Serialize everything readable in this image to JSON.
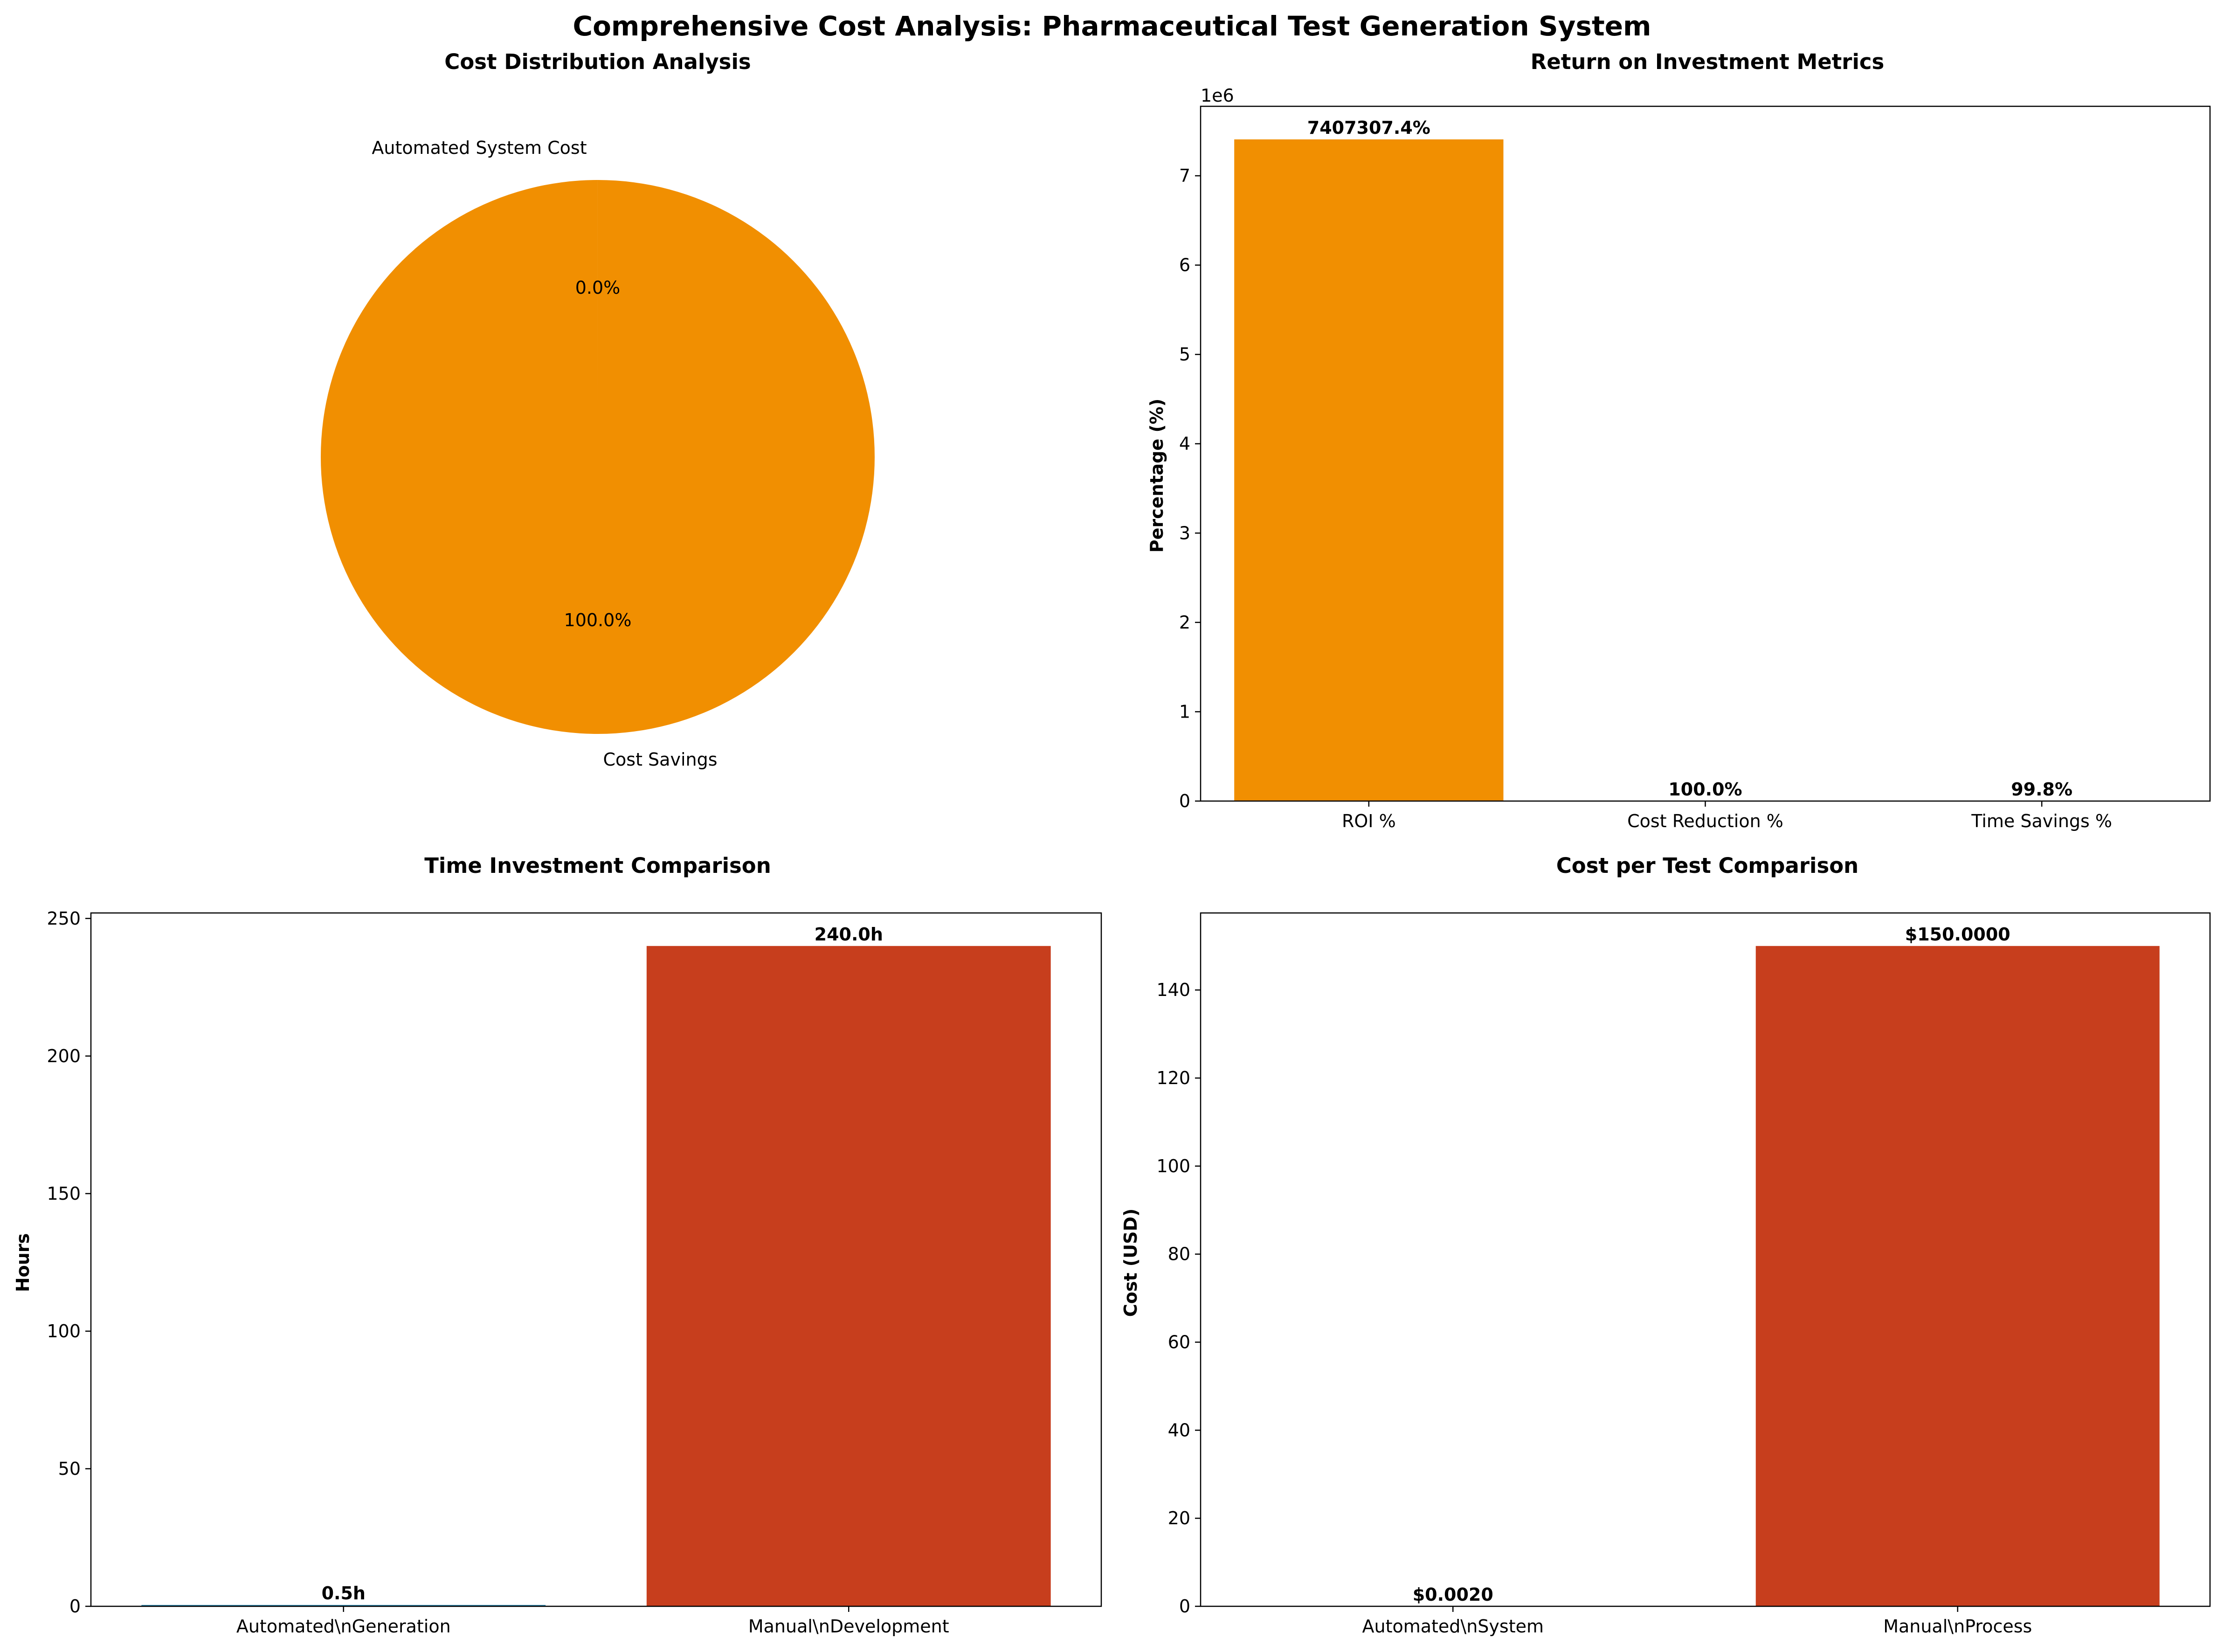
{
  "figure": {
    "title": "Comprehensive Cost Analysis: Pharmaceutical Test Generation System"
  },
  "colors": {
    "orange": "#F18F01",
    "red": "#C73E1D",
    "blue": "#2E86AB",
    "axis": "#000000"
  },
  "chart_data": [
    {
      "id": "pie",
      "type": "pie",
      "title": "Cost Distribution Analysis",
      "slices": [
        {
          "label": "Automated System Cost",
          "value": 0.002,
          "pct_label": "0.0%",
          "color": "#2E86AB"
        },
        {
          "label": "Cost Savings",
          "value": 149.998,
          "pct_label": "100.0%",
          "color": "#F18F01"
        }
      ],
      "legend": "none"
    },
    {
      "id": "roi",
      "type": "bar",
      "title": "Return on Investment Metrics",
      "ylabel": "Percentage (%)",
      "offset_label": "1e6",
      "categories": [
        "ROI %",
        "Cost Reduction %",
        "Time Savings %"
      ],
      "values": [
        7407307.4,
        100.0,
        99.8
      ],
      "value_labels": [
        "7407307.4%",
        "100.0%",
        "99.8%"
      ],
      "color": "#F18F01",
      "ylim": [
        0,
        7777672.77
      ],
      "yticks": [
        0,
        1000000,
        2000000,
        3000000,
        4000000,
        5000000,
        6000000,
        7000000
      ],
      "ytick_labels": [
        "0",
        "1",
        "2",
        "3",
        "4",
        "5",
        "6",
        "7"
      ],
      "grid": false
    },
    {
      "id": "time",
      "type": "bar",
      "title": "Time Investment Comparison",
      "ylabel": "Hours",
      "categories": [
        "Automated\\nGeneration",
        "Manual\\nDevelopment"
      ],
      "values": [
        0.5,
        240.0
      ],
      "value_labels": [
        "0.5h",
        "240.0h"
      ],
      "colors": [
        "#2E86AB",
        "#C73E1D"
      ],
      "ylim": [
        0,
        252
      ],
      "yticks": [
        0,
        50,
        100,
        150,
        200,
        250
      ],
      "ytick_labels": [
        "0",
        "50",
        "100",
        "150",
        "200",
        "250"
      ],
      "grid": false
    },
    {
      "id": "cost",
      "type": "bar",
      "title": "Cost per Test Comparison",
      "ylabel": "Cost (USD)",
      "categories": [
        "Automated\\nSystem",
        "Manual\\nProcess"
      ],
      "values": [
        0.002,
        150.0
      ],
      "value_labels": [
        "$0.0020",
        "$150.0000"
      ],
      "colors": [
        "#2E86AB",
        "#C73E1D"
      ],
      "ylim": [
        0,
        157.5
      ],
      "yticks": [
        0,
        20,
        40,
        60,
        80,
        100,
        120,
        140
      ],
      "ytick_labels": [
        "0",
        "20",
        "40",
        "60",
        "80",
        "100",
        "120",
        "140"
      ],
      "grid": false
    }
  ]
}
